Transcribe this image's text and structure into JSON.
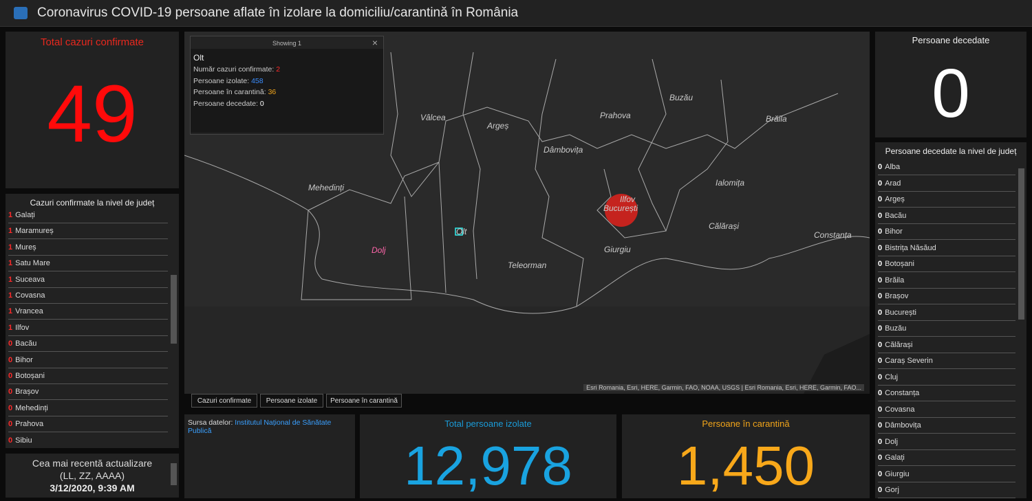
{
  "header": {
    "title": "Coronavirus COVID-19 persoane aflate în izolare la domiciliu/carantină în România"
  },
  "total_confirmed": {
    "label": "Total cazuri confirmate",
    "value": 49
  },
  "county_confirmed": {
    "title": "Cazuri confirmate la nivel de județ",
    "rows": [
      {
        "count": 1,
        "county": "Galați"
      },
      {
        "count": 1,
        "county": "Maramureș"
      },
      {
        "count": 1,
        "county": "Mureș"
      },
      {
        "count": 1,
        "county": "Satu Mare"
      },
      {
        "count": 1,
        "county": "Suceava"
      },
      {
        "count": 1,
        "county": "Covasna"
      },
      {
        "count": 1,
        "county": "Vrancea"
      },
      {
        "count": 1,
        "county": "Ilfov"
      },
      {
        "count": 0,
        "county": "Bacău"
      },
      {
        "count": 0,
        "county": "Bihor"
      },
      {
        "count": 0,
        "county": "Botoșani"
      },
      {
        "count": 0,
        "county": "Brașov"
      },
      {
        "count": 0,
        "county": "Mehedinți"
      },
      {
        "count": 0,
        "county": "Prahova"
      },
      {
        "count": 0,
        "county": "Sibiu"
      }
    ]
  },
  "last_update": {
    "label": "Cea mai recentă actualizare",
    "format": "(LL, ZZ, AAAA)",
    "value": "3/12/2020, 9:39 AM"
  },
  "popup": {
    "header": "Showing 1",
    "title": "Olt",
    "fields": [
      {
        "label": "Număr cazuri confirmate:",
        "value": 2
      },
      {
        "label": "Persoane izolate:",
        "value": 458
      },
      {
        "label": "Persoane în carantină:",
        "value": 36
      },
      {
        "label": "Persoane decedate:",
        "value": 0
      }
    ]
  },
  "map": {
    "labels": [
      "Vâlcea",
      "Argeș",
      "Prahova",
      "Buzău",
      "Brăila",
      "Dâmbovița",
      "Mehedinți",
      "Ialomița",
      "Ilfov",
      "București",
      "Olt",
      "Dolj",
      "Călărași",
      "Constanța",
      "Giurgiu",
      "Teleorman"
    ],
    "attribution": "Esri Romania, Esri, HERE, Garmin, FAO, NOAA, USGS | Esri Romania, Esri, HERE, Garmin, FAO..."
  },
  "tabs": [
    "Cazuri confirmate",
    "Persoane izolate",
    "Persoane în carantină"
  ],
  "source": {
    "label": "Sursa datelor:",
    "link": "Institutul Național de Sănătate Publică"
  },
  "isolated": {
    "label": "Total persoane izolate",
    "value": "12,978"
  },
  "quarantine": {
    "label": "Persoane în carantină",
    "value": "1,450"
  },
  "deaths": {
    "label": "Persoane decedate",
    "value": 0
  },
  "county_deaths": {
    "title": "Persoane decedate la nivel de județ",
    "rows": [
      {
        "count": 0,
        "county": "Alba"
      },
      {
        "count": 0,
        "county": "Arad"
      },
      {
        "count": 0,
        "county": "Argeș"
      },
      {
        "count": 0,
        "county": "Bacău"
      },
      {
        "count": 0,
        "county": "Bihor"
      },
      {
        "count": 0,
        "county": "Bistrița Năsăud"
      },
      {
        "count": 0,
        "county": "Botoșani"
      },
      {
        "count": 0,
        "county": "Brăila"
      },
      {
        "count": 0,
        "county": "Brașov"
      },
      {
        "count": 0,
        "county": "București"
      },
      {
        "count": 0,
        "county": "Buzău"
      },
      {
        "count": 0,
        "county": "Călărași"
      },
      {
        "count": 0,
        "county": "Caraș Severin"
      },
      {
        "count": 0,
        "county": "Cluj"
      },
      {
        "count": 0,
        "county": "Constanța"
      },
      {
        "count": 0,
        "county": "Covasna"
      },
      {
        "count": 0,
        "county": "Dâmbovița"
      },
      {
        "count": 0,
        "county": "Dolj"
      },
      {
        "count": 0,
        "county": "Galați"
      },
      {
        "count": 0,
        "county": "Giurgiu"
      },
      {
        "count": 0,
        "county": "Gorj"
      }
    ]
  }
}
